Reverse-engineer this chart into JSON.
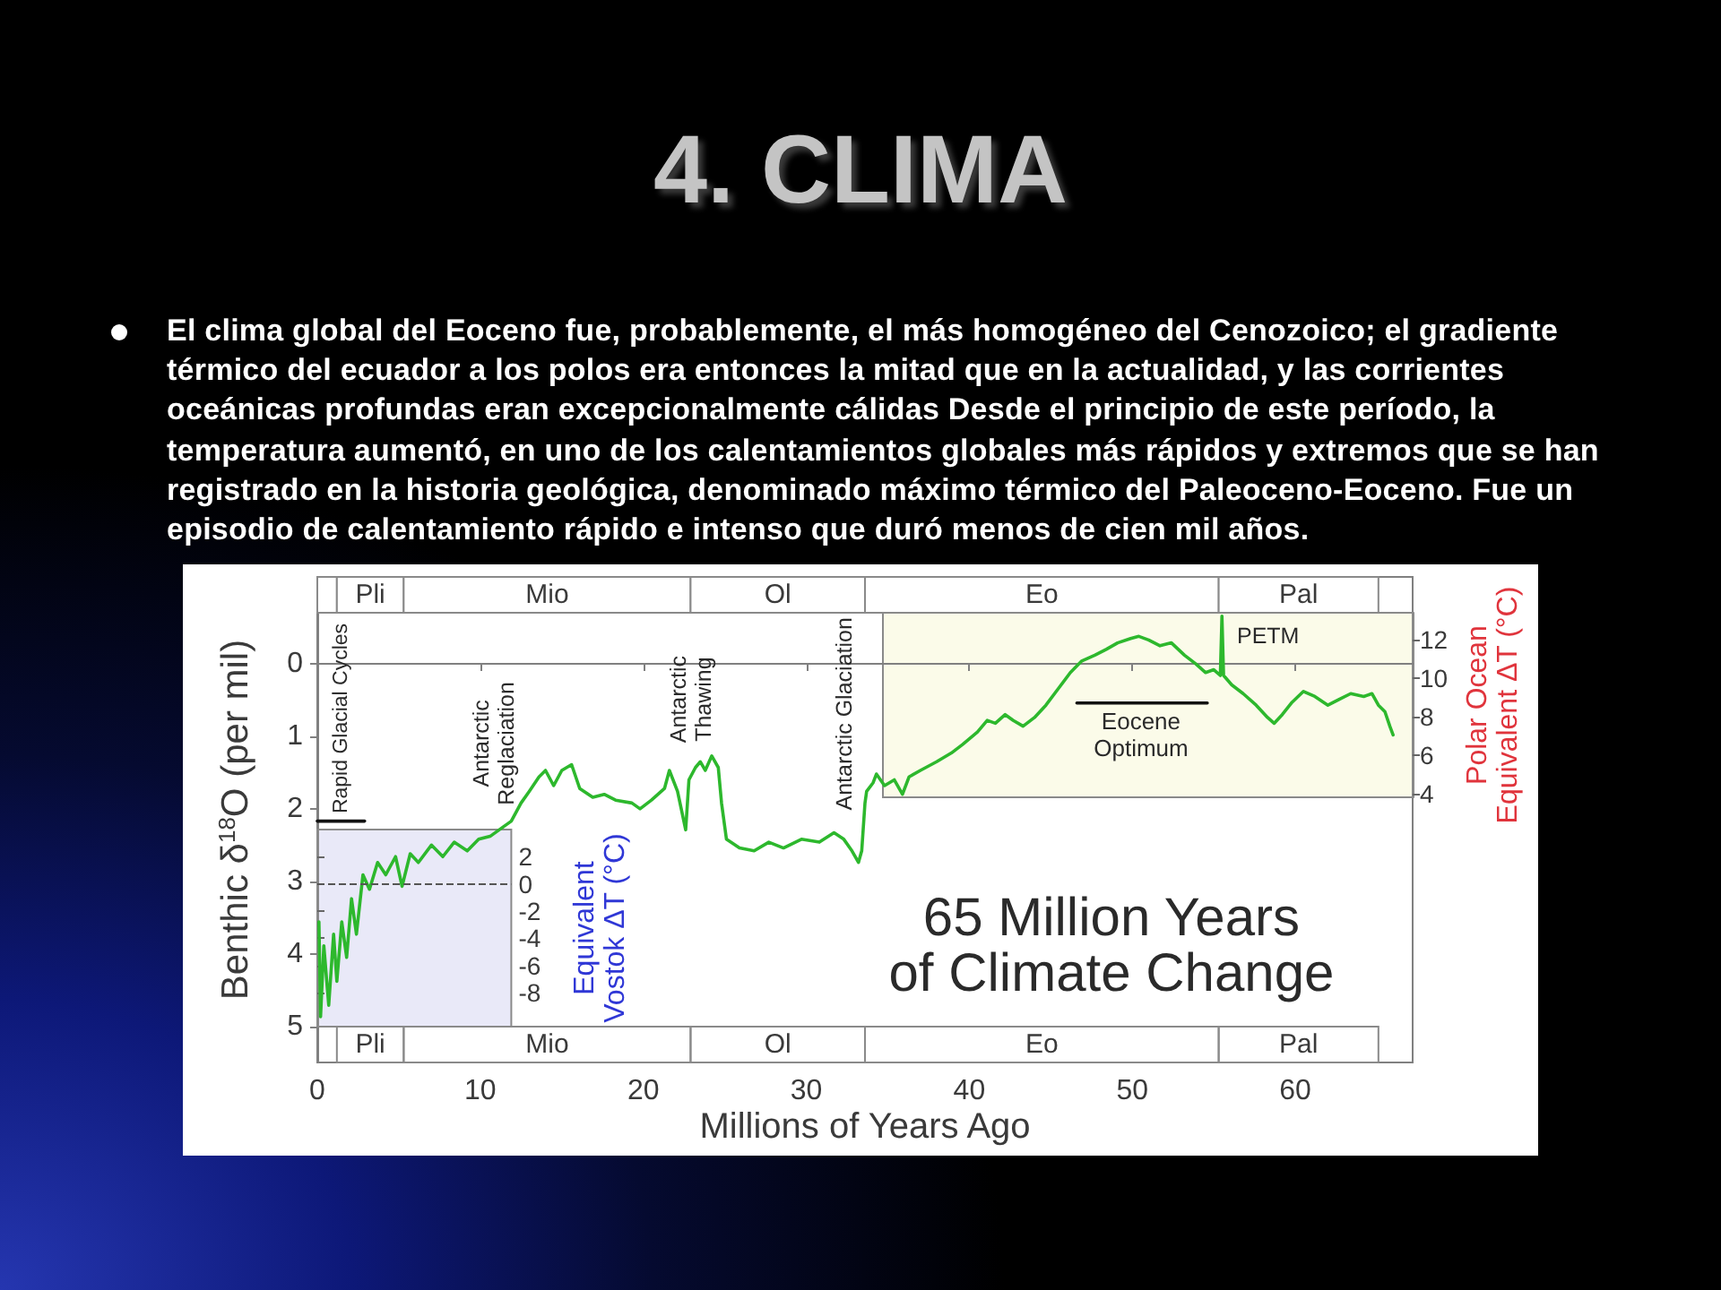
{
  "chart_data": {
    "type": "line",
    "title": "4. CLIMA",
    "subtitle": "El clima global del Eoceno fue, probablemente, el más homogéneo del Cenozoico; el gradiente térmico del ecuador a los polos era entonces la mitad que en la actualidad, y las corrientes oceánicas profundas eran excepcionalmente cálidas Desde el principio de este período, la temperatura aumentó, en uno de los calentamientos globales más rápidos y extremos que se han registrado en la historia geológica, denominado máximo térmico del Paleoceno-Eoceno. Fue un episodio de calentamiento rápido e intenso que duró menos de cien mil años.",
    "xlabel": "Millions of Years Ago",
    "ylabel": "Benthic δ$^{18}$O (per mil)",
    "y2label": "Polar Ocean\nEquivalent ΔT (°C)",
    "y3label": "Equivalent\nVostok ΔT (°C)",
    "xlim": [
      0,
      67.2
    ],
    "xticks": [
      0,
      10,
      20,
      30,
      40,
      50,
      60
    ],
    "ylim": [
      5.5,
      -1.2
    ],
    "yticks": [
      0,
      1,
      2,
      3,
      4,
      5
    ],
    "y2lim": [
      3.8,
      13.4
    ],
    "y2ticks": [
      4,
      6,
      8,
      10,
      12
    ],
    "y3lim": [
      -10.5,
      4
    ],
    "y3ticks": [
      -8,
      -6,
      -4,
      -2,
      0,
      2
    ],
    "marker": "none",
    "series": [
      {
        "color": "#2db82d",
        "x": [
          0.1,
          0.2,
          0.4,
          0.7,
          1.0,
          1.2,
          1.5,
          1.8,
          2.1,
          2.4,
          2.8,
          3.2,
          3.7,
          4.2,
          4.8,
          5.2,
          5.7,
          6.2,
          7.0,
          7.7,
          8.4,
          9.2,
          9.9,
          10.6,
          11.4,
          11.9,
          12.5,
          13.0,
          13.6,
          14.0,
          14.5,
          15.0,
          15.6,
          16.1,
          16.9,
          17.6,
          18.3,
          19.3,
          19.8,
          20.5,
          21.3,
          21.6,
          22.1,
          22.6,
          22.8,
          23.2,
          23.5,
          23.8,
          24.2,
          24.6,
          24.8,
          25.1,
          25.9,
          26.8,
          27.7,
          28.6,
          29.7,
          30.8,
          31.7,
          32.3,
          32.8,
          33.2,
          33.4,
          33.6,
          33.7,
          34.1,
          34.3,
          34.8,
          35.4,
          35.9,
          36.3,
          37.0,
          38.0,
          38.9,
          39.6,
          40.5,
          41.1,
          41.6,
          42.2,
          42.7,
          43.3,
          44.0,
          44.7,
          45.5,
          46.2,
          46.9,
          47.7,
          48.4,
          49.1,
          49.9,
          50.4,
          51.0,
          51.7,
          52.4,
          53.2,
          53.9,
          54.5,
          55.0,
          55.4,
          55.5,
          55.6,
          56.1,
          56.8,
          57.6,
          58.3,
          58.7,
          59.2,
          59.8,
          60.5,
          61.2,
          62.0,
          62.7,
          63.4,
          64.2,
          64.7,
          65.1,
          65.5,
          65.8,
          66.0
        ],
        "values": [
          3.56,
          4.87,
          3.89,
          4.71,
          3.73,
          4.38,
          3.56,
          4.05,
          3.24,
          3.73,
          2.91,
          3.11,
          2.74,
          2.91,
          2.66,
          3.07,
          2.62,
          2.74,
          2.5,
          2.66,
          2.46,
          2.58,
          2.42,
          2.38,
          2.25,
          2.17,
          1.92,
          1.76,
          1.56,
          1.47,
          1.68,
          1.47,
          1.39,
          1.72,
          1.84,
          1.8,
          1.88,
          1.92,
          2.0,
          1.88,
          1.72,
          1.47,
          1.76,
          2.29,
          1.6,
          1.43,
          1.35,
          1.47,
          1.27,
          1.43,
          1.92,
          2.42,
          2.54,
          2.58,
          2.46,
          2.54,
          2.42,
          2.46,
          2.33,
          2.42,
          2.58,
          2.74,
          2.58,
          1.92,
          1.76,
          1.64,
          1.52,
          1.68,
          1.6,
          1.8,
          1.56,
          1.47,
          1.35,
          1.23,
          1.11,
          0.94,
          0.78,
          0.82,
          0.7,
          0.78,
          0.86,
          0.74,
          0.57,
          0.33,
          0.12,
          -0.04,
          -0.12,
          -0.2,
          -0.29,
          -0.35,
          -0.38,
          -0.33,
          -0.25,
          -0.29,
          -0.12,
          0.0,
          0.12,
          0.08,
          0.16,
          -0.66,
          0.16,
          0.29,
          0.41,
          0.57,
          0.74,
          0.82,
          0.7,
          0.53,
          0.38,
          0.45,
          0.57,
          0.49,
          0.41,
          0.45,
          0.41,
          0.57,
          0.66,
          0.86,
          0.98
        ]
      },
      {
        "color": "#111111",
        "x": [
          0,
          2.9
        ],
        "values": [
          2.17,
          2.17
        ]
      },
      {
        "color": "#111111",
        "x": [
          46.6,
          54.6
        ],
        "values": [
          0.54,
          0.54
        ]
      }
    ],
    "bands": [
      {
        "axis": "x",
        "from": 0,
        "to": 1.2
      },
      {
        "axis": "x",
        "from": 1.2,
        "to": 5.3,
        "label": "Pli"
      },
      {
        "axis": "x",
        "from": 5.3,
        "to": 22.9,
        "label": "Mio"
      },
      {
        "axis": "x",
        "from": 22.9,
        "to": 33.6,
        "label": "Ol"
      },
      {
        "axis": "x",
        "from": 33.6,
        "to": 55.3,
        "label": "Eo"
      },
      {
        "axis": "x",
        "from": 55.3,
        "to": 65.1,
        "label": "Pal"
      },
      {
        "axis": "x",
        "from": 34.7,
        "to": 67.2,
        "color": "#fbfbe9"
      },
      {
        "axis": "x",
        "from": 0,
        "to": 11.9,
        "color": "#e9e9f8"
      }
    ],
    "ref_lines": [
      {
        "axis": "y3",
        "value": 0,
        "line_style": "dashed",
        "color": "#555555"
      }
    ],
    "annotations": [
      "65 Million Years\nof Climate Change",
      "Rapid Glacial Cycles",
      "Antarctic\nReglaciation",
      "Antarctic\nThawing",
      "Antarctic Glaciation",
      "PETM",
      "Eocene\nOptimum"
    ]
  }
}
